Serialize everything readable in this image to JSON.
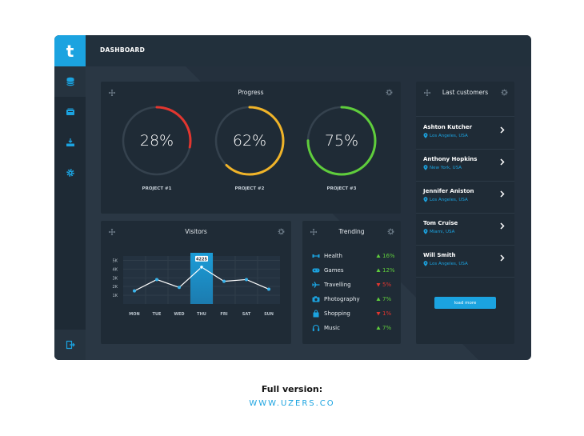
{
  "header": {
    "title": "DASHBOARD"
  },
  "logo": {
    "letter": "t"
  },
  "sidebar": {
    "items": [
      {
        "icon": "database-icon"
      },
      {
        "icon": "cards-icon"
      },
      {
        "icon": "download-tray-icon"
      },
      {
        "icon": "gear-icon"
      }
    ],
    "bottom_icon": "logout-icon"
  },
  "progress": {
    "title": "Progress",
    "projects": [
      {
        "label": "PROJECT #1",
        "value": 28,
        "display": "28%",
        "color": "#e2362f"
      },
      {
        "label": "PROJECT #2",
        "value": 62,
        "display": "62%",
        "color": "#f0b429"
      },
      {
        "label": "PROJECT #3",
        "value": 75,
        "display": "75%",
        "color": "#5fcd3c"
      }
    ]
  },
  "visitors": {
    "title": "Visitors",
    "chart_data": {
      "type": "line",
      "categories": [
        "MON",
        "TUE",
        "WED",
        "THU",
        "FRI",
        "SAT",
        "SUN"
      ],
      "values": [
        1500,
        2800,
        1900,
        4225,
        2600,
        2800,
        1700
      ],
      "y_ticks": [
        "5K",
        "4K",
        "3K",
        "2K",
        "1K"
      ],
      "ylim": [
        0,
        5500
      ],
      "highlight": {
        "category": "THU",
        "label": "4225"
      }
    }
  },
  "trending": {
    "title": "Trending",
    "items": [
      {
        "label": "Health",
        "icon": "dumbbell-icon",
        "direction": "up",
        "pct": "16%"
      },
      {
        "label": "Games",
        "icon": "gamepad-icon",
        "direction": "up",
        "pct": "12%"
      },
      {
        "label": "Travelling",
        "icon": "plane-icon",
        "direction": "down",
        "pct": "5%"
      },
      {
        "label": "Photography",
        "icon": "camera-icon",
        "direction": "up",
        "pct": "7%"
      },
      {
        "label": "Shopping",
        "icon": "shopping-bag-icon",
        "direction": "down",
        "pct": "1%"
      },
      {
        "label": "Music",
        "icon": "headphones-icon",
        "direction": "up",
        "pct": "7%"
      }
    ]
  },
  "customers": {
    "title": "Last customers",
    "items": [
      {
        "name": "Ashton Kutcher",
        "location": "Los Angeles, USA"
      },
      {
        "name": "Anthony Hopkins",
        "location": "New York, USA"
      },
      {
        "name": "Jennifer Aniston",
        "location": "Los Angeles, USA"
      },
      {
        "name": "Tom Cruise",
        "location": "Miami, USA"
      },
      {
        "name": "Will Smith",
        "location": "Los Angeles, USA"
      }
    ],
    "load_more": "load more"
  },
  "footer": {
    "line1": "Full version:",
    "line2": "WWW.UZERS.CO"
  },
  "colors": {
    "accent": "#1ba3e0",
    "up": "#5fcd3c",
    "down": "#e2362f"
  }
}
